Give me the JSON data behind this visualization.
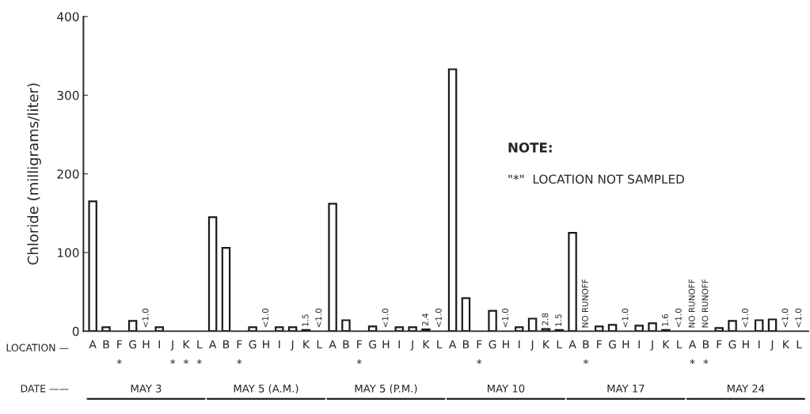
{
  "chart_data": {
    "type": "bar",
    "ylabel": "Chloride (milligrams/liter)",
    "xlabel": "LOCATION —",
    "categories": [
      "A",
      "B",
      "F\n*",
      "G",
      "H",
      "I",
      "J\n*",
      "K\n*",
      "L\n*",
      "A",
      "B",
      "F\n*",
      "G",
      "H",
      "I",
      "J",
      "K",
      "L",
      "A",
      "B",
      "F\n*",
      "G",
      "H",
      "I",
      "J",
      "K",
      "L",
      "A",
      "B",
      "F\n*",
      "G",
      "H",
      "I",
      "J",
      "K",
      "L",
      "A",
      "B\n*",
      "F",
      "G",
      "H",
      "I",
      "J",
      "K",
      "L",
      "A\n*",
      "B\n*",
      "F",
      "G",
      "H",
      "I",
      "J",
      "K",
      "L"
    ],
    "values": [
      165,
      5,
      null,
      13,
      null,
      5,
      null,
      null,
      null,
      145,
      106,
      null,
      5,
      null,
      5,
      5,
      1.5,
      null,
      162,
      14,
      null,
      6,
      null,
      5,
      5,
      2.4,
      null,
      333,
      42,
      null,
      26,
      null,
      5,
      16,
      2.8,
      1.5,
      125,
      null,
      6,
      8,
      null,
      7,
      10,
      1.6,
      null,
      null,
      null,
      4,
      13,
      null,
      14,
      15,
      null,
      null
    ],
    "value_labels": [
      null,
      null,
      null,
      null,
      "<1.0",
      null,
      null,
      null,
      null,
      null,
      null,
      null,
      null,
      "<1.0",
      null,
      null,
      "1.5",
      "<1.0",
      null,
      null,
      null,
      null,
      "<1.0",
      null,
      null,
      "2.4",
      "<1.0",
      null,
      null,
      null,
      null,
      "<1.0",
      null,
      null,
      "2.8",
      "1.5",
      null,
      "NO RUNOFF",
      null,
      null,
      "<1.0",
      null,
      null,
      "1.6",
      "<1.0",
      "NO RUNOFF",
      "NO RUNOFF",
      null,
      null,
      "<1.0",
      null,
      null,
      "<1.0",
      "<1.0"
    ],
    "color": "#1a1a1a",
    "ylim": [
      0,
      400
    ],
    "yticks": [
      0,
      100,
      200,
      300,
      400
    ],
    "grid": false,
    "annotations": [
      "NOTE:",
      "\"*\"  LOCATION NOT SAMPLED",
      "DATE ——",
      "MAY 3",
      "MAY 5 (A.M.)",
      "MAY 5 (P.M.)",
      "MAY 10",
      "MAY 17",
      "MAY 24"
    ]
  }
}
